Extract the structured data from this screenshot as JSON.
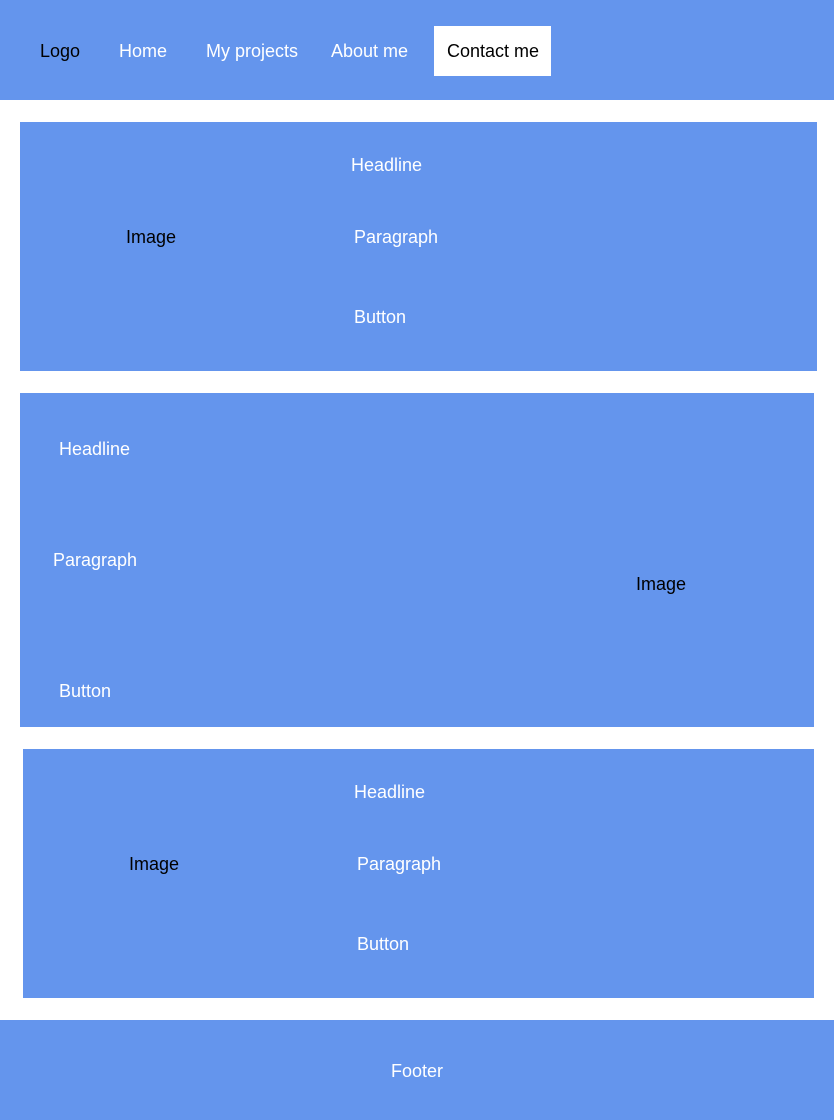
{
  "colors": {
    "accent": "#6495ed",
    "background": "#ffffff",
    "text_light": "#ffffff",
    "text_dark": "#000000"
  },
  "header": {
    "logo": "Logo",
    "nav": {
      "home": "Home",
      "projects": "My projects",
      "about": "About me",
      "contact": "Contact me"
    }
  },
  "sections": [
    {
      "image": "Image",
      "headline": "Headline",
      "paragraph": "Paragraph",
      "button": "Button"
    },
    {
      "image": "Image",
      "headline": "Headline",
      "paragraph": "Paragraph",
      "button": "Button"
    },
    {
      "image": "Image",
      "headline": "Headline",
      "paragraph": "Paragraph",
      "button": "Button"
    }
  ],
  "footer": {
    "text": "Footer"
  }
}
